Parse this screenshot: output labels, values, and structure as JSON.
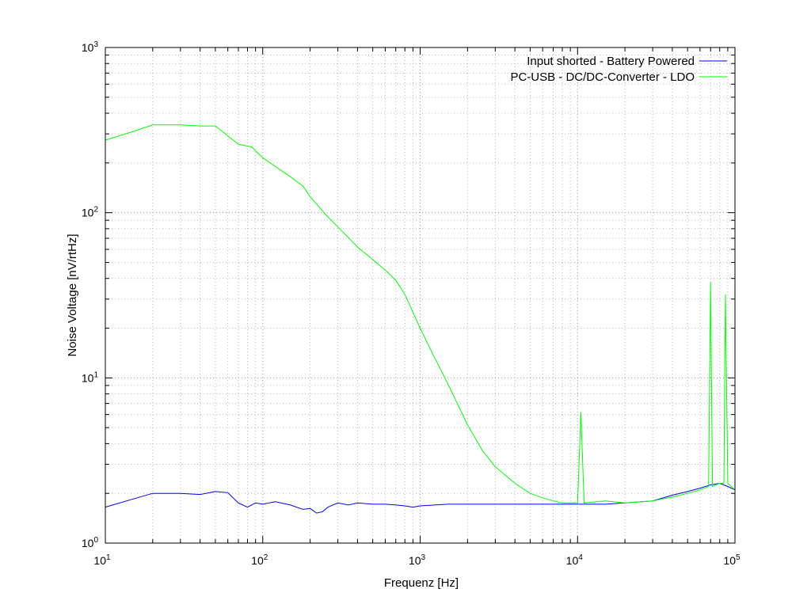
{
  "chart_data": {
    "type": "line",
    "title": "",
    "xlabel": "Frequenz [Hz]",
    "ylabel": "Noise Voltage [nV/rtHz]",
    "x_scale": "log",
    "y_scale": "log",
    "xlim": [
      10,
      100000
    ],
    "ylim": [
      1,
      1000
    ],
    "grid": true,
    "legend_position": "top-right",
    "x_ticks": [
      {
        "base": "10",
        "exp": "1"
      },
      {
        "base": "10",
        "exp": "2"
      },
      {
        "base": "10",
        "exp": "3"
      },
      {
        "base": "10",
        "exp": "4"
      },
      {
        "base": "10",
        "exp": "5"
      }
    ],
    "y_ticks": [
      {
        "base": "10",
        "exp": "0"
      },
      {
        "base": "10",
        "exp": "1"
      },
      {
        "base": "10",
        "exp": "2"
      },
      {
        "base": "10",
        "exp": "3"
      }
    ],
    "series": [
      {
        "name": "Input shorted - Battery Powered",
        "color": "#0000ff",
        "x": [
          10,
          15,
          20,
          30,
          40,
          50,
          60,
          70,
          80,
          90,
          100,
          120,
          150,
          180,
          200,
          220,
          240,
          260,
          300,
          350,
          400,
          500,
          600,
          700,
          800,
          900,
          1000,
          1500,
          2000,
          3000,
          5000,
          7000,
          10000,
          15000,
          20000,
          30000,
          40000,
          50000,
          60000,
          70000,
          80000,
          90000,
          100000
        ],
        "y": [
          1.65,
          1.85,
          2.0,
          2.0,
          1.97,
          2.05,
          2.02,
          1.75,
          1.65,
          1.75,
          1.72,
          1.78,
          1.7,
          1.6,
          1.62,
          1.52,
          1.55,
          1.65,
          1.75,
          1.7,
          1.75,
          1.72,
          1.72,
          1.7,
          1.68,
          1.65,
          1.68,
          1.72,
          1.72,
          1.72,
          1.72,
          1.72,
          1.72,
          1.72,
          1.75,
          1.8,
          1.95,
          2.05,
          2.15,
          2.25,
          2.3,
          2.2,
          2.1
        ]
      },
      {
        "name": "PC-USB - DC/DC-Converter - LDO",
        "color": "#00ff00",
        "x": [
          10,
          15,
          20,
          30,
          40,
          50,
          70,
          85,
          100,
          150,
          180,
          200,
          250,
          300,
          400,
          500,
          600,
          700,
          800,
          1000,
          1200,
          1500,
          2000,
          2500,
          3000,
          4000,
          5000,
          6000,
          7000,
          8000,
          10000,
          10500,
          11000,
          15000,
          20000,
          30000,
          40000,
          50000,
          60000,
          68000,
          70000,
          72000,
          80000,
          85000,
          87000,
          90000,
          100000
        ],
        "y": [
          275,
          310,
          340,
          340,
          335,
          335,
          260,
          250,
          215,
          165,
          145,
          125,
          98,
          82,
          62,
          52,
          45,
          39,
          32,
          20,
          14,
          9.2,
          5.2,
          3.6,
          2.9,
          2.3,
          2.0,
          1.88,
          1.8,
          1.75,
          1.75,
          6.2,
          1.75,
          1.8,
          1.75,
          1.8,
          1.9,
          2.0,
          2.1,
          2.2,
          38,
          2.2,
          2.3,
          2.3,
          32,
          2.3,
          2.1
        ]
      }
    ]
  }
}
